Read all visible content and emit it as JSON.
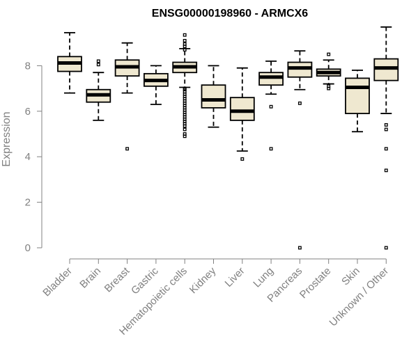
{
  "chart_data": {
    "type": "boxplot",
    "title": "ENSG00000198960 - ARMCX6",
    "ylabel": "Expression",
    "xlabel": "",
    "ylim": [
      0,
      10
    ],
    "yticks": [
      0,
      2,
      4,
      6,
      8
    ],
    "grid": false,
    "colors": {
      "box_fill": "#efe8d0",
      "box_stroke": "#000000",
      "axis": "#808080"
    },
    "categories": [
      "Bladder",
      "Brain",
      "Breast",
      "Gastric",
      "Hematopoietic cells",
      "Kidney",
      "Liver",
      "Lung",
      "Pancreas",
      "Prostate",
      "Skin",
      "Unknown / Other"
    ],
    "boxes": [
      {
        "category": "Bladder",
        "whisker_low": 6.8,
        "q1": 7.75,
        "median": 8.12,
        "q3": 8.4,
        "whisker_high": 9.45,
        "outliers": []
      },
      {
        "category": "Brain",
        "whisker_low": 5.6,
        "q1": 6.4,
        "median": 6.72,
        "q3": 6.95,
        "whisker_high": 7.7,
        "outliers": [
          8.05,
          8.2
        ]
      },
      {
        "category": "Breast",
        "whisker_low": 6.8,
        "q1": 7.55,
        "median": 7.95,
        "q3": 8.25,
        "whisker_high": 9.0,
        "outliers": [
          4.35
        ]
      },
      {
        "category": "Gastric",
        "whisker_low": 6.3,
        "q1": 7.1,
        "median": 7.35,
        "q3": 7.65,
        "whisker_high": 8.0,
        "outliers": []
      },
      {
        "category": "Hematopoietic cells",
        "whisker_low": 7.05,
        "q1": 7.7,
        "median": 7.95,
        "q3": 8.15,
        "whisker_high": 8.75,
        "outliers": [
          9.35,
          9.1,
          8.95,
          8.85,
          8.7,
          7.0,
          6.95,
          6.85,
          6.75,
          6.65,
          6.55,
          6.45,
          6.35,
          6.25,
          6.15,
          6.05,
          5.95,
          5.85,
          5.75,
          5.65,
          5.55,
          5.45,
          5.35,
          5.2,
          5.0,
          4.9
        ]
      },
      {
        "category": "Kidney",
        "whisker_low": 5.3,
        "q1": 6.15,
        "median": 6.5,
        "q3": 7.15,
        "whisker_high": 8.0,
        "outliers": []
      },
      {
        "category": "Liver",
        "whisker_low": 4.25,
        "q1": 5.6,
        "median": 6.0,
        "q3": 6.6,
        "whisker_high": 7.9,
        "outliers": [
          3.9
        ]
      },
      {
        "category": "Lung",
        "whisker_low": 6.75,
        "q1": 7.15,
        "median": 7.5,
        "q3": 7.7,
        "whisker_high": 8.2,
        "outliers": [
          6.2,
          4.35
        ]
      },
      {
        "category": "Pancreas",
        "whisker_low": 6.95,
        "q1": 7.5,
        "median": 7.9,
        "q3": 8.15,
        "whisker_high": 8.65,
        "outliers": [
          6.35,
          0.0
        ]
      },
      {
        "category": "Prostate",
        "whisker_low": 7.2,
        "q1": 7.55,
        "median": 7.7,
        "q3": 7.85,
        "whisker_high": 8.25,
        "outliers": [
          8.5,
          7.1,
          7.0
        ]
      },
      {
        "category": "Skin",
        "whisker_low": 5.1,
        "q1": 5.9,
        "median": 7.05,
        "q3": 7.45,
        "whisker_high": 7.8,
        "outliers": []
      },
      {
        "category": "Unknown / Other",
        "whisker_low": 5.9,
        "q1": 7.35,
        "median": 7.9,
        "q3": 8.3,
        "whisker_high": 9.7,
        "outliers": [
          5.4,
          5.2,
          4.35,
          3.4,
          0.0
        ]
      }
    ]
  }
}
